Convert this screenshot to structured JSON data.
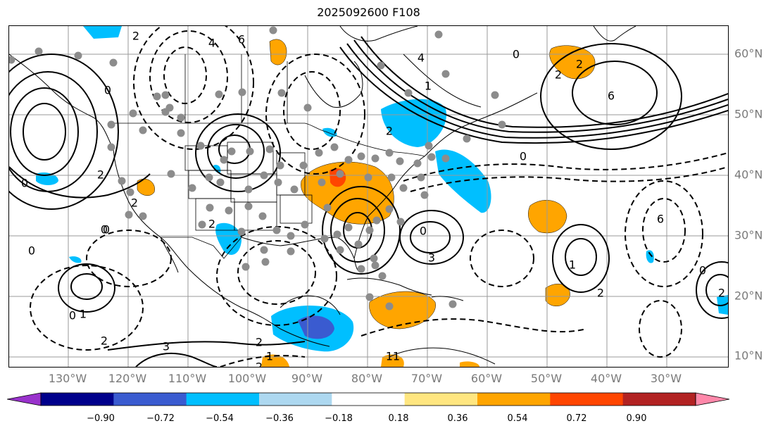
{
  "title": "2025092600 F108",
  "lat_labels": [
    "60°N",
    "50°N",
    "40°N",
    "30°N",
    "20°N",
    "10°N"
  ],
  "lon_labels": [
    "130°W",
    "120°W",
    "110°W",
    "100°W",
    "90°W",
    "80°W",
    "70°W",
    "60°W",
    "50°W",
    "40°W",
    "30°W"
  ],
  "colorbar": {
    "ticks": [
      "−0.90",
      "−0.72",
      "−0.54",
      "−0.36",
      "−0.18",
      "0.18",
      "0.36",
      "0.54",
      "0.72",
      "0.90"
    ],
    "colors": [
      "#9932cc",
      "#00008b",
      "#3a5bd0",
      "#00bfff",
      "#add8f0",
      "#ffffff",
      "#ffe680",
      "#ffa500",
      "#ff4500",
      "#b22222",
      "#ff88aa"
    ]
  },
  "contour_labels": [
    "6",
    "2",
    "4",
    "2",
    "0",
    "0",
    "2",
    "0",
    "1",
    "2",
    "0",
    "2",
    "6",
    "4",
    "0",
    "1",
    "6",
    "2",
    "2",
    "2",
    "2",
    "3",
    "1",
    "1",
    "0",
    "0",
    "2",
    "0",
    "0",
    "1",
    "2",
    "3",
    "2",
    "0",
    "1"
  ],
  "colors": {
    "axis_label": "#7a7a7a",
    "grid": "#9a9a9a",
    "station": "#8c8c8c"
  }
}
